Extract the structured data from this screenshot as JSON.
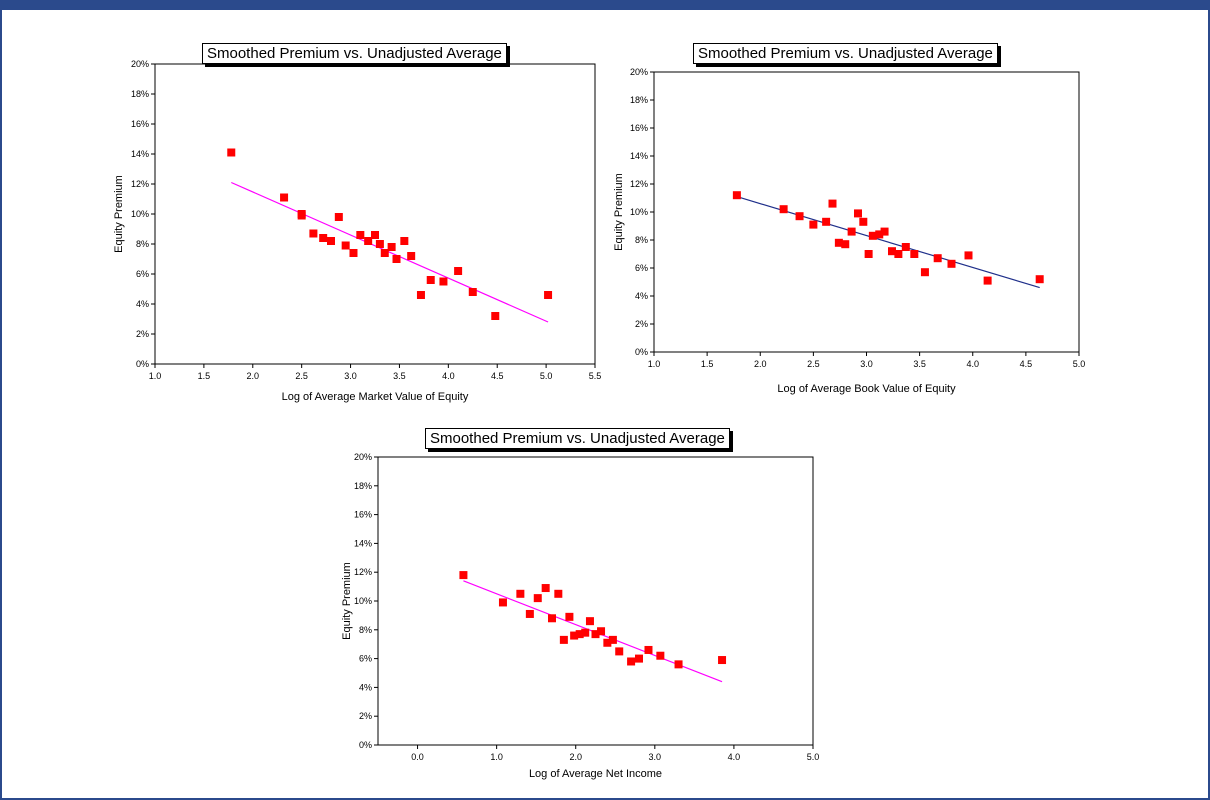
{
  "chart_data": [
    {
      "type": "scatter",
      "title": "Smoothed Premium vs. Unadjusted Average",
      "xlabel": "Log of Average Market Value of Equity",
      "ylabel": "Equity Premium",
      "xlim": [
        1.0,
        5.5
      ],
      "ylim": [
        0,
        20
      ],
      "xticks": [
        "1.0",
        "1.5",
        "2.0",
        "2.5",
        "3.0",
        "3.5",
        "4.0",
        "4.5",
        "5.0",
        "5.5"
      ],
      "yticks": [
        "0%",
        "2%",
        "4%",
        "6%",
        "8%",
        "10%",
        "12%",
        "14%",
        "16%",
        "18%",
        "20%"
      ],
      "marker_color": "#ff0000",
      "trend_color": "#ff00ff",
      "points": [
        [
          1.78,
          14.1
        ],
        [
          2.32,
          11.1
        ],
        [
          2.5,
          10.0
        ],
        [
          2.5,
          9.9
        ],
        [
          2.62,
          8.7
        ],
        [
          2.72,
          8.4
        ],
        [
          2.8,
          8.2
        ],
        [
          2.88,
          9.8
        ],
        [
          2.95,
          7.9
        ],
        [
          3.03,
          7.4
        ],
        [
          3.1,
          8.6
        ],
        [
          3.18,
          8.2
        ],
        [
          3.25,
          8.6
        ],
        [
          3.3,
          8.0
        ],
        [
          3.35,
          7.4
        ],
        [
          3.42,
          7.8
        ],
        [
          3.47,
          7.0
        ],
        [
          3.55,
          8.2
        ],
        [
          3.62,
          7.2
        ],
        [
          3.72,
          4.6
        ],
        [
          3.82,
          5.6
        ],
        [
          3.95,
          5.5
        ],
        [
          4.1,
          6.2
        ],
        [
          4.25,
          4.8
        ],
        [
          4.48,
          3.2
        ],
        [
          5.02,
          4.6
        ]
      ],
      "trend": [
        [
          1.78,
          12.1
        ],
        [
          5.02,
          2.8
        ]
      ]
    },
    {
      "type": "scatter",
      "title": "Smoothed Premium vs. Unadjusted Average",
      "xlabel": "Log of Average Book Value of Equity",
      "ylabel": "Equity Premium",
      "xlim": [
        1.0,
        5.0
      ],
      "ylim": [
        0,
        20
      ],
      "xticks": [
        "1.0",
        "1.5",
        "2.0",
        "2.5",
        "3.0",
        "3.5",
        "4.0",
        "4.5",
        "5.0"
      ],
      "yticks": [
        "0%",
        "2%",
        "4%",
        "6%",
        "8%",
        "10%",
        "12%",
        "14%",
        "16%",
        "18%",
        "20%"
      ],
      "marker_color": "#ff0000",
      "trend_color": "#1f2f8a",
      "points": [
        [
          1.78,
          11.2
        ],
        [
          2.22,
          10.2
        ],
        [
          2.37,
          9.7
        ],
        [
          2.5,
          9.1
        ],
        [
          2.62,
          9.3
        ],
        [
          2.68,
          10.6
        ],
        [
          2.74,
          7.8
        ],
        [
          2.8,
          7.7
        ],
        [
          2.86,
          8.6
        ],
        [
          2.92,
          9.9
        ],
        [
          2.97,
          9.3
        ],
        [
          3.02,
          7.0
        ],
        [
          3.06,
          8.3
        ],
        [
          3.12,
          8.4
        ],
        [
          3.17,
          8.6
        ],
        [
          3.24,
          7.2
        ],
        [
          3.3,
          7.0
        ],
        [
          3.37,
          7.5
        ],
        [
          3.45,
          7.0
        ],
        [
          3.55,
          5.7
        ],
        [
          3.67,
          6.7
        ],
        [
          3.8,
          6.3
        ],
        [
          3.96,
          6.9
        ],
        [
          4.14,
          5.1
        ],
        [
          4.63,
          5.2
        ]
      ],
      "trend": [
        [
          1.78,
          11.1
        ],
        [
          4.63,
          4.6
        ]
      ]
    },
    {
      "type": "scatter",
      "title": "Smoothed Premium vs. Unadjusted Average",
      "xlabel": "Log of Average Net Income",
      "ylabel": "Equity Premium",
      "xlim": [
        -0.5,
        5.0
      ],
      "ylim": [
        0,
        20
      ],
      "xticks": [
        "0.0",
        "1.0",
        "2.0",
        "3.0",
        "4.0",
        "5.0"
      ],
      "xtick_values": [
        0,
        1,
        2,
        3,
        4,
        5
      ],
      "yticks": [
        "0%",
        "2%",
        "4%",
        "6%",
        "8%",
        "10%",
        "12%",
        "14%",
        "16%",
        "18%",
        "20%"
      ],
      "marker_color": "#ff0000",
      "trend_color": "#ff00ff",
      "points": [
        [
          0.58,
          11.8
        ],
        [
          1.08,
          9.9
        ],
        [
          1.3,
          10.5
        ],
        [
          1.42,
          9.1
        ],
        [
          1.52,
          10.2
        ],
        [
          1.62,
          10.9
        ],
        [
          1.7,
          8.8
        ],
        [
          1.78,
          10.5
        ],
        [
          1.85,
          7.3
        ],
        [
          1.92,
          8.9
        ],
        [
          1.98,
          7.6
        ],
        [
          2.05,
          7.7
        ],
        [
          2.12,
          7.8
        ],
        [
          2.18,
          8.6
        ],
        [
          2.25,
          7.7
        ],
        [
          2.32,
          7.9
        ],
        [
          2.4,
          7.1
        ],
        [
          2.47,
          7.3
        ],
        [
          2.55,
          6.5
        ],
        [
          2.7,
          5.8
        ],
        [
          2.8,
          6.0
        ],
        [
          2.92,
          6.6
        ],
        [
          3.07,
          6.2
        ],
        [
          3.3,
          5.6
        ],
        [
          3.85,
          5.9
        ]
      ],
      "trend": [
        [
          0.58,
          11.4
        ],
        [
          3.85,
          4.4
        ]
      ]
    }
  ]
}
